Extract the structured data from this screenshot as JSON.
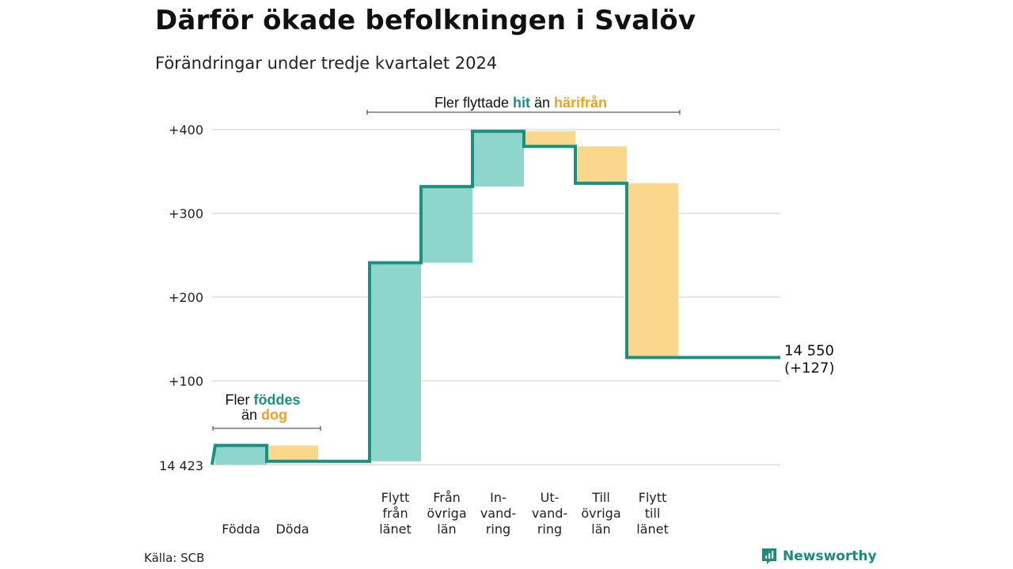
{
  "title": "Därför ökade befolkningen i Svalöv",
  "subtitle": "Förändringar under tredje kvartalet 2024",
  "source": "Källa: SCB",
  "logo": "Newsworthy",
  "colors": {
    "inflow": "#8ed6cc",
    "outflow": "#fbd78e",
    "line": "#1a9080",
    "accent_in": "#1a9080",
    "accent_out": "#f2a11d",
    "grid": "#dddddd"
  },
  "chart_data": {
    "type": "waterfall",
    "title": "Därför ökade befolkningen i Svalöv",
    "subtitle": "Förändringar under tredje kvartalet 2024",
    "base_label": "14 423",
    "base_value": 14423,
    "ylim": [
      0,
      400
    ],
    "yticks": [
      {
        "value": 100,
        "label": "+100"
      },
      {
        "value": 200,
        "label": "+200"
      },
      {
        "value": 300,
        "label": "+300"
      },
      {
        "value": 400,
        "label": "+400"
      }
    ],
    "steps": [
      {
        "label": [
          "Födda"
        ],
        "change": 23,
        "kind": "in"
      },
      {
        "label": [
          "Döda"
        ],
        "change": -19,
        "kind": "out"
      },
      {
        "label": [],
        "change": 0,
        "kind": "gap"
      },
      {
        "label": [
          "Flytt",
          "från",
          "länet"
        ],
        "change": 237,
        "kind": "in"
      },
      {
        "label": [
          "Från",
          "övriga",
          "län"
        ],
        "change": 91,
        "kind": "in"
      },
      {
        "label": [
          "In-",
          "vand-",
          "ring"
        ],
        "change": 66,
        "kind": "in"
      },
      {
        "label": [
          "Ut-",
          "vand-",
          "ring"
        ],
        "change": -18,
        "kind": "out"
      },
      {
        "label": [
          "Till",
          "övriga",
          "län"
        ],
        "change": -44,
        "kind": "out"
      },
      {
        "label": [
          "Flytt",
          "till",
          "länet"
        ],
        "change": -208,
        "kind": "out"
      },
      {
        "label": [],
        "change": 0,
        "kind": "tail"
      }
    ],
    "end_value": "14 550",
    "end_change": "(+127)",
    "annotations": [
      {
        "parts": [
          {
            "text": "Fler ",
            "style": "plain"
          },
          {
            "text": "födde",
            "style": "in"
          },
          {
            "text": "s",
            "style": "in"
          }
        ],
        "line2": [
          {
            "text": "än ",
            "style": "plain"
          },
          {
            "text": "dog",
            "style": "out"
          }
        ]
      },
      {
        "parts": [
          {
            "text": "Fler flyttade ",
            "style": "plain"
          },
          {
            "text": "hit",
            "style": "in"
          },
          {
            "text": " än ",
            "style": "plain"
          },
          {
            "text": "härifrån",
            "style": "out"
          }
        ]
      }
    ]
  }
}
